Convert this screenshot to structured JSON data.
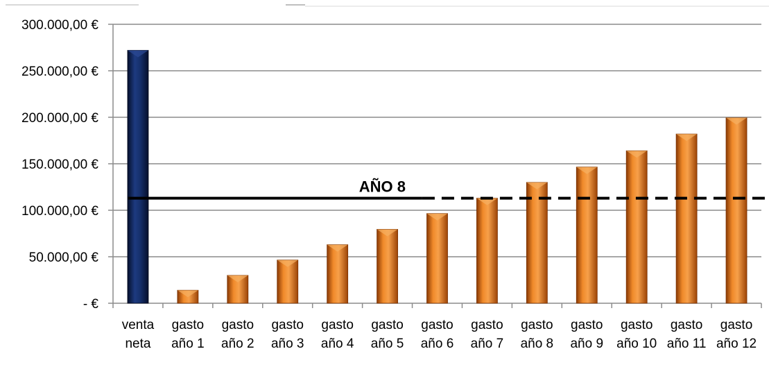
{
  "chart_data": {
    "type": "bar",
    "categories": [
      [
        "venta",
        "neta"
      ],
      [
        "gasto",
        "año 1"
      ],
      [
        "gasto",
        "año 2"
      ],
      [
        "gasto",
        "año 3"
      ],
      [
        "gasto",
        "año 4"
      ],
      [
        "gasto",
        "año 5"
      ],
      [
        "gasto",
        "año 6"
      ],
      [
        "gasto",
        "año 7"
      ],
      [
        "gasto",
        "año 8"
      ],
      [
        "gasto",
        "año 9"
      ],
      [
        "gasto",
        "año 10"
      ],
      [
        "gasto",
        "año 11"
      ],
      [
        "gasto",
        "año 12"
      ]
    ],
    "values": [
      272000,
      14000,
      30000,
      46500,
      63000,
      79500,
      96500,
      113000,
      130000,
      146500,
      164000,
      182000,
      199500
    ],
    "ylim": [
      0,
      300000
    ],
    "yticks": [
      0,
      50000,
      100000,
      150000,
      200000,
      250000,
      300000
    ],
    "ytick_labels": [
      "-  €",
      "50.000,00 €",
      "100.000,00 €",
      "150.000,00 €",
      "200.000,00 €",
      "250.000,00 €",
      "300.000,00 €"
    ],
    "colors": {
      "venta_bar": "#0d2357",
      "gasto_bar": "#e46c0a",
      "grid": "#8c8c8c",
      "reference_line": "#000000"
    },
    "grid": true,
    "reference_line": {
      "label": "AÑO 8",
      "value": 113000
    }
  }
}
